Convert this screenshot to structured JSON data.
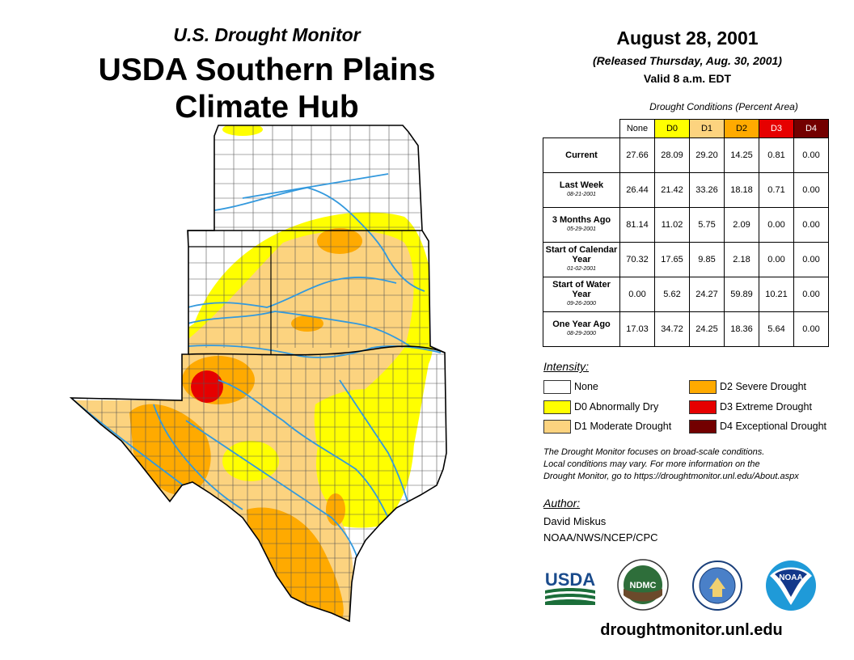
{
  "header": {
    "subtitle": "U.S. Drought Monitor",
    "title_line1": "USDA Southern Plains",
    "title_line2": "Climate Hub"
  },
  "release": {
    "date": "August 28, 2001",
    "released": "(Released Thursday, Aug. 30, 2001)",
    "valid": "Valid 8 a.m. EDT"
  },
  "table": {
    "caption": "Drought Conditions (Percent Area)",
    "columns": [
      {
        "label": "None",
        "color": "#ffffff",
        "text_color": "#000000"
      },
      {
        "label": "D0",
        "color": "#ffff00",
        "text_color": "#000000"
      },
      {
        "label": "D1",
        "color": "#fcd37f",
        "text_color": "#000000"
      },
      {
        "label": "D2",
        "color": "#ffaa00",
        "text_color": "#000000"
      },
      {
        "label": "D3",
        "color": "#e60000",
        "text_color": "#ffffff"
      },
      {
        "label": "D4",
        "color": "#730000",
        "text_color": "#ffffff"
      }
    ],
    "rows": [
      {
        "label": "Current",
        "date": "",
        "values": [
          "27.66",
          "28.09",
          "29.20",
          "14.25",
          "0.81",
          "0.00"
        ]
      },
      {
        "label": "Last Week",
        "date": "08-21-2001",
        "values": [
          "26.44",
          "21.42",
          "33.26",
          "18.18",
          "0.71",
          "0.00"
        ]
      },
      {
        "label": "3 Months Ago",
        "date": "05-29-2001",
        "values": [
          "81.14",
          "11.02",
          "5.75",
          "2.09",
          "0.00",
          "0.00"
        ]
      },
      {
        "label": "Start of Calendar Year",
        "date": "01-02-2001",
        "values": [
          "70.32",
          "17.65",
          "9.85",
          "2.18",
          "0.00",
          "0.00"
        ]
      },
      {
        "label": "Start of Water Year",
        "date": "09-26-2000",
        "values": [
          "0.00",
          "5.62",
          "24.27",
          "59.89",
          "10.21",
          "0.00"
        ]
      },
      {
        "label": "One Year Ago",
        "date": "08-29-2000",
        "values": [
          "17.03",
          "34.72",
          "24.25",
          "18.36",
          "5.64",
          "0.00"
        ]
      }
    ]
  },
  "legend": {
    "title": "Intensity:",
    "items": [
      {
        "label": "None",
        "color": "#ffffff"
      },
      {
        "label": "D0 Abnormally Dry",
        "color": "#ffff00"
      },
      {
        "label": "D1 Moderate Drought",
        "color": "#fcd37f"
      },
      {
        "label": "D2 Severe Drought",
        "color": "#ffaa00"
      },
      {
        "label": "D3 Extreme Drought",
        "color": "#e60000"
      },
      {
        "label": "D4 Exceptional Drought",
        "color": "#730000"
      }
    ]
  },
  "note": {
    "line1": "The Drought Monitor focuses on broad-scale conditions.",
    "line2": "Local conditions may vary. For more information on the",
    "line3": "Drought Monitor, go to https://droughtmonitor.unl.edu/About.aspx"
  },
  "author": {
    "title": "Author:",
    "name": "David Miskus",
    "org": "NOAA/NWS/NCEP/CPC"
  },
  "logos": {
    "usda": "USDA",
    "ndmc": "NDMC",
    "noaa": "NOAA"
  },
  "website": "droughtmonitor.unl.edu",
  "map": {
    "states": [
      "Kansas",
      "Oklahoma",
      "Texas"
    ],
    "colors": {
      "water": "#3399dd",
      "border": "#000000",
      "county": "#555555"
    }
  }
}
